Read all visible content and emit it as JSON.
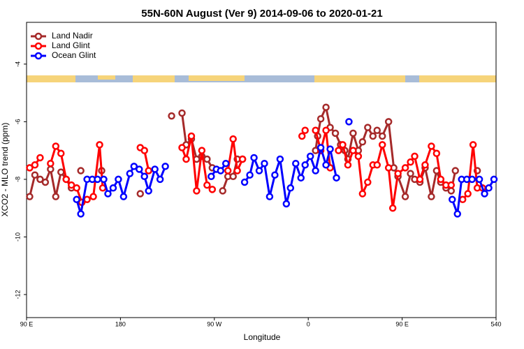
{
  "chart_data": {
    "type": "line",
    "title": "55N-60N August (Ver 9)   2014-09-06 to 2020-01-21",
    "xlabel": "Longitude",
    "ylabel": "XCO2 - MLO trend (ppm)",
    "xlim": [
      90,
      540
    ],
    "ylim": [
      -12.8,
      -2.55
    ],
    "xticks": [
      {
        "value": 90,
        "label": "90 E"
      },
      180,
      {
        "value": 270,
        "label": "90 W"
      },
      {
        "value": 360,
        "label": "0"
      },
      {
        "value": 450,
        "label": "90 E"
      },
      540
    ],
    "yticks": [
      -4,
      -6,
      -8,
      -10,
      -12
    ],
    "legend": "top-left",
    "series": [
      {
        "name": "Land Nadir",
        "color": "#a52a2a",
        "x": [
          93,
          98,
          103,
          108,
          113,
          118,
          123,
          128,
          133,
          null,
          142,
          null,
          162,
          null,
          199,
          null,
          229,
          null,
          239,
          243,
          248,
          253,
          258,
          263,
          268,
          null,
          278,
          283,
          288,
          292,
          297,
          null,
          367,
          369,
          372,
          377,
          381,
          386,
          391,
          395,
          398,
          403,
          408,
          412,
          417,
          422,
          426,
          431,
          437,
          442,
          446,
          453,
          458,
          462,
          467,
          472,
          478,
          483,
          487,
          492,
          497,
          501,
          null,
          522
        ],
        "values": [
          -8.6,
          -7.85,
          -8.0,
          -8.1,
          -7.65,
          -8.6,
          -7.75,
          -8.0,
          -8.3,
          null,
          -7.7,
          null,
          -7.7,
          null,
          -8.5,
          null,
          -5.8,
          null,
          -5.7,
          -6.8,
          -6.6,
          -7.3,
          -7.2,
          -7.3,
          -7.6,
          null,
          -8.4,
          -7.9,
          -7.9,
          -7.3,
          -7.3,
          null,
          -7.0,
          -6.5,
          -5.9,
          -5.5,
          -6.2,
          -6.4,
          -6.8,
          -7.0,
          -7.3,
          -6.4,
          -7.0,
          -6.7,
          -6.2,
          -6.5,
          -6.3,
          -6.5,
          -6.0,
          -7.6,
          -7.9,
          -8.6,
          -7.8,
          -8.0,
          -8.1,
          -7.6,
          -8.6,
          -7.7,
          -8.1,
          -8.3,
          -8.4,
          -7.7,
          null,
          -7.7
        ]
      },
      {
        "name": "Land Glint",
        "color": "#ff0000",
        "x": [
          93,
          98,
          103,
          null,
          113,
          118,
          123,
          128,
          133,
          138,
          143,
          148,
          154,
          160,
          163,
          null,
          199,
          203,
          207,
          null,
          239,
          243,
          248,
          253,
          258,
          263,
          268,
          null,
          283,
          288,
          292,
          297,
          null,
          354,
          357,
          null,
          367,
          372,
          377,
          381,
          null,
          389,
          393,
          398,
          403,
          408,
          412,
          417,
          422,
          426,
          431,
          437,
          441,
          446,
          453,
          458,
          462,
          467,
          472,
          478,
          483,
          487,
          492,
          497,
          null,
          508,
          513,
          518,
          522,
          527
        ],
        "values": [
          -7.6,
          -7.5,
          -7.25,
          null,
          -7.45,
          -6.85,
          -7.1,
          -8.0,
          -8.2,
          -8.3,
          -8.8,
          -8.7,
          -8.6,
          -6.8,
          -8.3,
          null,
          -6.9,
          -7.0,
          -7.7,
          null,
          -6.9,
          -7.3,
          -6.5,
          -8.4,
          -7.0,
          -8.2,
          -8.35,
          null,
          -7.7,
          -6.6,
          -7.7,
          -7.3,
          null,
          -6.5,
          -6.3,
          null,
          -6.3,
          -7.0,
          -6.3,
          -7.6,
          null,
          -7.0,
          -6.8,
          -7.5,
          -7.0,
          -7.2,
          -8.5,
          -8.1,
          -7.5,
          -7.5,
          -6.8,
          -7.6,
          -9.0,
          -7.8,
          -7.6,
          -7.4,
          -7.2,
          -8.0,
          -7.5,
          -6.85,
          -7.1,
          -8.0,
          -8.2,
          -8.2,
          null,
          -8.7,
          -8.5,
          -6.8,
          -8.3,
          -8.3
        ]
      },
      {
        "name": "Ocean Glint",
        "color": "#0000ff",
        "x": [
          138,
          142,
          148,
          153,
          158,
          164,
          168,
          173,
          178,
          183,
          189,
          193,
          198,
          203,
          207,
          213,
          218,
          223,
          null,
          267,
          272,
          276,
          281,
          null,
          299,
          304,
          308,
          313,
          318,
          323,
          328,
          333,
          339,
          343,
          348,
          353,
          357,
          362,
          367,
          372,
          377,
          381,
          387,
          null,
          399,
          null,
          498,
          503,
          507,
          512,
          517,
          524,
          529,
          533,
          538
        ],
        "values": [
          -8.7,
          -9.2,
          -8.0,
          -8.0,
          -8.0,
          -8.0,
          -8.5,
          -8.3,
          -8.0,
          -8.6,
          -7.8,
          -7.55,
          -7.65,
          -7.9,
          -8.4,
          -7.65,
          -8.0,
          -7.55,
          null,
          -7.9,
          -7.65,
          -7.7,
          -7.45,
          null,
          -8.1,
          -7.85,
          -7.25,
          -7.7,
          -7.45,
          -8.6,
          -7.85,
          -7.3,
          -8.85,
          -8.3,
          -7.45,
          -7.95,
          -7.5,
          -7.2,
          -7.7,
          -6.9,
          -7.5,
          -6.95,
          -7.95,
          null,
          -6.0,
          null,
          -8.7,
          -9.2,
          -8.0,
          -8.0,
          -8.0,
          -8.0,
          -8.5,
          -8.3,
          -8.0
        ]
      }
    ]
  }
}
